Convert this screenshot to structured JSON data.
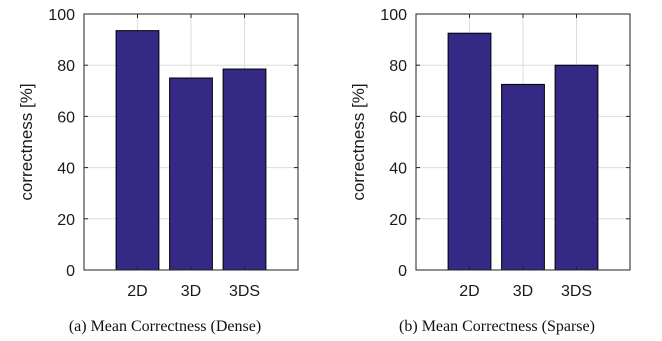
{
  "chart_data": [
    {
      "type": "bar",
      "categories": [
        "2D",
        "3D",
        "3DS"
      ],
      "values": [
        93.5,
        75,
        78.5
      ],
      "ylabel": "correctness [%]",
      "xlabel": "",
      "ylim": [
        0,
        100
      ],
      "yticks": [
        0,
        20,
        40,
        60,
        80,
        100
      ],
      "grid": true,
      "caption": "(a) Mean Correctness (Dense)",
      "bar_color": "#342A85"
    },
    {
      "type": "bar",
      "categories": [
        "2D",
        "3D",
        "3DS"
      ],
      "values": [
        92.5,
        72.5,
        80
      ],
      "ylabel": "correctness [%]",
      "xlabel": "",
      "ylim": [
        0,
        100
      ],
      "yticks": [
        0,
        20,
        40,
        60,
        80,
        100
      ],
      "grid": true,
      "caption": "(b) Mean Correctness (Sparse)",
      "bar_color": "#342A85"
    }
  ]
}
